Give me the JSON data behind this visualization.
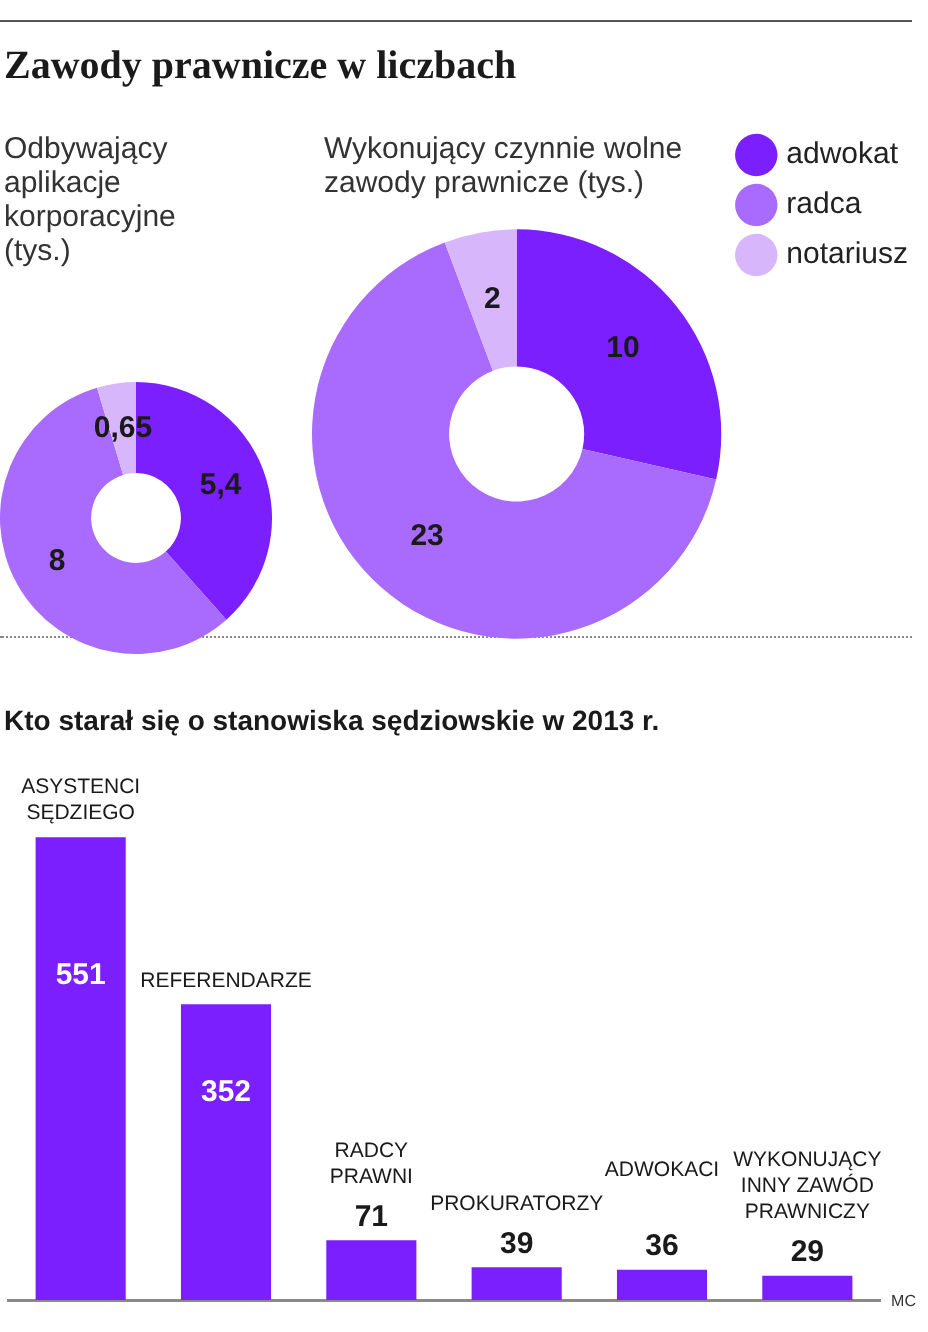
{
  "chart_data": [
    {
      "type": "donut",
      "title": "Zawody prawnicze w liczbach",
      "subtitle": "Odbywający aplikacje korporacyjne (tys.)",
      "categories": [
        null,
        null,
        null
      ],
      "values": [
        5.4,
        8,
        0.65
      ],
      "colors": [
        "#7b1fff",
        "#a86bfd",
        "#d8b6fb"
      ],
      "value_labels": [
        "5,4",
        "8",
        "0,65"
      ]
    },
    {
      "type": "donut",
      "title": "Wykonujący czynnie wolne zawody prawnicze (tys.)",
      "categories": [
        "adwokat",
        "radca",
        "notariusz"
      ],
      "values": [
        10,
        23,
        2
      ],
      "colors": [
        "#7b1fff",
        "#a86bfd",
        "#d8b6fb"
      ],
      "data_labels": true,
      "legend": "top right"
    },
    {
      "type": "bar",
      "title": "Kto starał się o stanowiska sędziowskie w 2013 r.",
      "categories": [
        "ASYSTENCI SĘDZIEGO",
        "REFERENDARZE",
        "RADCY PRAWNI",
        "PROKURATORZY",
        "ADWOKACI",
        "WYKONUJĄCY INNY ZAWÓD PRAWNICZY"
      ],
      "values": [
        551,
        352,
        71,
        39,
        36,
        29
      ],
      "color": "#7b1fff",
      "data_labels": true,
      "tick_labels": "x",
      "annotations": [
        "MC"
      ]
    }
  ]
}
